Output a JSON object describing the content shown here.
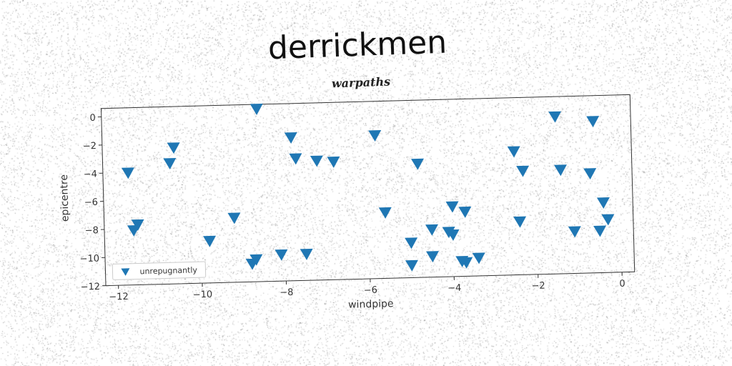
{
  "title": "derrickmen",
  "chart_data": {
    "type": "scatter",
    "title": "warpaths",
    "xlabel": "windpipe",
    "ylabel": "epicentre",
    "xlim": [
      -12.3,
      0.3
    ],
    "ylim": [
      -12.0,
      0.6
    ],
    "xticks": [
      -12,
      -10,
      -8,
      -6,
      -4,
      -2,
      0
    ],
    "yticks": [
      0,
      -2,
      -4,
      -6,
      -8,
      -10,
      -12
    ],
    "legend_position": "lower-left",
    "grid": false,
    "series": [
      {
        "name": "unrepugnantly",
        "marker": "triangle-down",
        "color": "#1f77b4",
        "points": [
          [
            -11.7,
            -4.0
          ],
          [
            -11.6,
            -8.1
          ],
          [
            -11.5,
            -7.7
          ],
          [
            -10.7,
            -3.4
          ],
          [
            -10.6,
            -2.3
          ],
          [
            -9.8,
            -9.0
          ],
          [
            -9.2,
            -7.4
          ],
          [
            -8.8,
            -10.7
          ],
          [
            -8.7,
            -10.4
          ],
          [
            -8.6,
            0.3
          ],
          [
            -8.1,
            -10.1
          ],
          [
            -7.8,
            -1.8
          ],
          [
            -7.7,
            -3.3
          ],
          [
            -7.5,
            -10.1
          ],
          [
            -7.2,
            -3.5
          ],
          [
            -6.8,
            -3.6
          ],
          [
            -5.8,
            -1.8
          ],
          [
            -5.6,
            -7.3
          ],
          [
            -5.0,
            -9.5
          ],
          [
            -5.0,
            -11.1
          ],
          [
            -4.8,
            -3.9
          ],
          [
            -4.5,
            -8.6
          ],
          [
            -4.5,
            -10.5
          ],
          [
            -4.1,
            -8.8
          ],
          [
            -4.0,
            -9.0
          ],
          [
            -4.0,
            -7.0
          ],
          [
            -3.8,
            -10.9
          ],
          [
            -3.7,
            -11.0
          ],
          [
            -3.7,
            -7.4
          ],
          [
            -3.4,
            -10.7
          ],
          [
            -2.5,
            -3.2
          ],
          [
            -2.4,
            -8.2
          ],
          [
            -2.3,
            -4.6
          ],
          [
            -1.5,
            -0.8
          ],
          [
            -1.4,
            -4.6
          ],
          [
            -1.1,
            -9.0
          ],
          [
            -0.7,
            -4.9
          ],
          [
            -0.6,
            -1.2
          ],
          [
            -0.5,
            -9.0
          ],
          [
            -0.4,
            -7.0
          ],
          [
            -0.3,
            -8.2
          ]
        ]
      }
    ]
  }
}
